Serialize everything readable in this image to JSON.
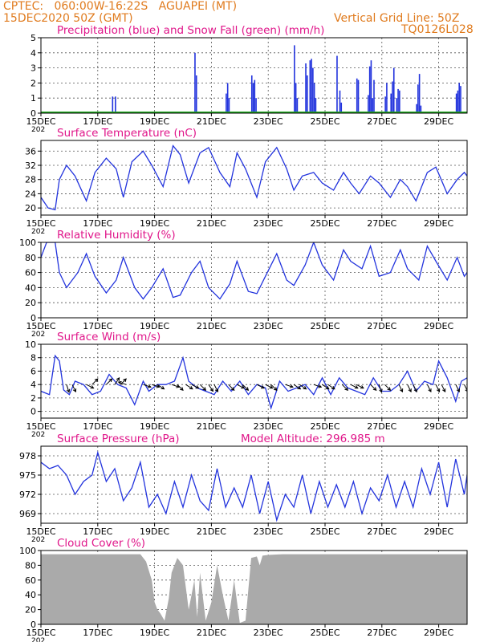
{
  "header": {
    "line1": "CPTEC:   060:00W-16:22S   AGUAPEI (MT)",
    "line2": "15DEC2020 50Z (GMT)",
    "grid_note": "Vertical Grid Line: 50Z",
    "code": "TQ0126L028",
    "color": "#e07b1e"
  },
  "colors": {
    "title": "#e0168a",
    "line": "#2233dd",
    "snow": "#22aa22",
    "cloud": "#aaaaaa",
    "arrow": "#000000"
  },
  "x_axis": {
    "range": [
      0,
      15
    ],
    "ticks": [
      0,
      2,
      4,
      6,
      8,
      10,
      12,
      14
    ],
    "labels": [
      "15DEC",
      "17DEC",
      "19DEC",
      "21DEC",
      "23DEC",
      "25DEC",
      "27DEC",
      "29DEC"
    ],
    "year_label": "202"
  },
  "chart_data": [
    {
      "type": "bar",
      "title": "Precipitation (blue) and Snow Fall (green) (mm/h)",
      "ylim": [
        0,
        5
      ],
      "yticks": [
        0,
        1,
        2,
        3,
        4,
        5
      ],
      "series": [
        {
          "name": "Precipitation",
          "x": [
            2.5,
            2.6,
            5.4,
            5.45,
            6.5,
            6.55,
            6.6,
            7.4,
            7.45,
            7.5,
            7.55,
            8.9,
            8.95,
            9.0,
            9.3,
            9.35,
            9.45,
            9.5,
            9.55,
            9.6,
            9.65,
            10.4,
            10.5,
            10.55,
            11.1,
            11.15,
            11.5,
            11.55,
            11.6,
            11.65,
            11.7,
            12.1,
            12.15,
            12.3,
            12.35,
            12.4,
            12.5,
            12.55,
            12.6,
            13.2,
            13.25,
            13.3,
            13.35,
            14.6,
            14.65,
            14.7,
            14.75
          ],
          "values": [
            1.1,
            1.1,
            4.0,
            2.5,
            1.3,
            2.0,
            1.0,
            2.5,
            2.0,
            2.2,
            1.0,
            4.5,
            2.0,
            1.0,
            3.3,
            2.5,
            3.5,
            3.6,
            3.0,
            2.0,
            1.0,
            3.8,
            1.5,
            0.7,
            2.3,
            2.2,
            1.2,
            3.1,
            3.5,
            1.0,
            2.2,
            1.1,
            2.0,
            1.3,
            2.1,
            3.0,
            1.0,
            1.6,
            1.5,
            0.6,
            1.9,
            2.6,
            0.5,
            1.3,
            1.5,
            2.0,
            1.8
          ]
        },
        {
          "name": "Snow Fall",
          "x": [
            0,
            15
          ],
          "values": [
            0,
            0
          ]
        }
      ]
    },
    {
      "type": "line",
      "title": "Surface Temperature (nC)",
      "ylim": [
        18,
        39
      ],
      "yticks": [
        20,
        24,
        28,
        32,
        36
      ],
      "series": [
        {
          "x": [
            0,
            0.25,
            0.5,
            0.65,
            0.9,
            1.2,
            1.6,
            1.9,
            2.3,
            2.65,
            2.9,
            3.2,
            3.6,
            3.9,
            4.3,
            4.65,
            4.9,
            5.2,
            5.6,
            5.9,
            6.3,
            6.65,
            6.9,
            7.2,
            7.6,
            7.9,
            8.3,
            8.65,
            8.9,
            9.2,
            9.6,
            9.9,
            10.3,
            10.65,
            10.9,
            11.2,
            11.6,
            11.9,
            12.3,
            12.65,
            12.9,
            13.2,
            13.6,
            13.9,
            14.3,
            14.65,
            14.9,
            15
          ],
          "y": [
            23,
            20,
            19.5,
            28,
            32,
            29,
            22,
            30,
            34,
            31,
            23,
            33,
            36,
            32,
            26,
            37.5,
            35,
            27,
            35.5,
            37,
            30,
            26,
            35.5,
            31,
            23,
            33,
            37,
            31,
            25,
            29,
            30,
            27,
            25,
            30,
            27,
            24,
            29,
            27,
            23,
            28,
            26,
            22,
            30,
            31.5,
            24,
            28,
            30,
            29
          ]
        }
      ]
    },
    {
      "type": "line",
      "title": "Relative Humidity (%)",
      "ylim": [
        0,
        100
      ],
      "yticks": [
        0,
        20,
        40,
        60,
        80,
        100
      ],
      "series": [
        {
          "x": [
            0,
            0.2,
            0.5,
            0.65,
            0.9,
            1.3,
            1.6,
            1.9,
            2.3,
            2.65,
            2.9,
            3.3,
            3.6,
            3.9,
            4.3,
            4.65,
            4.9,
            5.3,
            5.6,
            5.9,
            6.3,
            6.65,
            6.9,
            7.3,
            7.6,
            7.9,
            8.3,
            8.65,
            8.9,
            9.3,
            9.6,
            9.9,
            10.3,
            10.65,
            10.9,
            11.3,
            11.6,
            11.9,
            12.3,
            12.65,
            12.9,
            13.3,
            13.6,
            13.9,
            14.3,
            14.65,
            14.9,
            15
          ],
          "y": [
            80,
            100,
            100,
            60,
            40,
            60,
            85,
            55,
            33,
            50,
            80,
            40,
            25,
            40,
            65,
            27,
            30,
            60,
            75,
            40,
            25,
            45,
            75,
            35,
            32,
            55,
            85,
            50,
            43,
            70,
            100,
            70,
            50,
            90,
            75,
            65,
            95,
            55,
            60,
            90,
            65,
            50,
            95,
            75,
            50,
            80,
            55,
            60
          ]
        }
      ]
    },
    {
      "type": "line",
      "title": "Surface Wind (m/s)",
      "ylim": [
        -1,
        10
      ],
      "yticks": [
        0,
        2,
        4,
        6,
        8,
        10
      ],
      "series": [
        {
          "x": [
            0,
            0.3,
            0.5,
            0.65,
            0.8,
            1.0,
            1.2,
            1.5,
            1.8,
            2.1,
            2.4,
            2.7,
            3.0,
            3.3,
            3.6,
            3.8,
            4.1,
            4.4,
            4.7,
            5.0,
            5.2,
            5.5,
            5.8,
            6.1,
            6.4,
            6.7,
            7.0,
            7.3,
            7.6,
            7.9,
            8.1,
            8.4,
            8.7,
            9.0,
            9.3,
            9.6,
            9.9,
            10.2,
            10.5,
            10.8,
            11.1,
            11.4,
            11.7,
            12.0,
            12.3,
            12.6,
            12.9,
            13.2,
            13.5,
            13.8,
            14.0,
            14.3,
            14.6,
            14.8,
            15
          ],
          "y": [
            3,
            2.5,
            8.3,
            7.5,
            3.2,
            2.5,
            4.5,
            4.0,
            2.5,
            3.0,
            5.5,
            4.0,
            3.5,
            1.0,
            4.5,
            3.0,
            4.0,
            4.0,
            4.5,
            8.0,
            4.5,
            3.5,
            3.0,
            2.5,
            4.5,
            3.0,
            4.5,
            2.5,
            4.0,
            3.5,
            0.5,
            4.5,
            3.0,
            3.5,
            4.0,
            2.5,
            5.0,
            2.5,
            5.0,
            3.5,
            3.0,
            2.5,
            5.0,
            3.0,
            3.0,
            4.0,
            6.0,
            3.0,
            4.5,
            4.0,
            7.5,
            5.0,
            1.5,
            4.5,
            5.0
          ]
        }
      ],
      "vectors": {
        "x": [
          0.9,
          1.1,
          1.6,
          1.8,
          2.3,
          2.6,
          2.8,
          3.0,
          3.6,
          3.9,
          4.1,
          4.6,
          4.8,
          5.1,
          5.3,
          5.6,
          5.9,
          6.1,
          6.6,
          6.9,
          7.1,
          7.6,
          7.9,
          8.1,
          8.6,
          8.9,
          9.1,
          9.6,
          9.9,
          10.1,
          10.6,
          10.9,
          11.1,
          11.6,
          11.9,
          12.1,
          12.6,
          12.9,
          13.1,
          13.6,
          13.9,
          14.1,
          14.6,
          14.9
        ],
        "u": [
          1,
          1,
          2,
          2,
          2,
          2,
          2,
          -3,
          3,
          3,
          3,
          3,
          2,
          3,
          2,
          2,
          2,
          1,
          2,
          2,
          2,
          2,
          2,
          2,
          3,
          3,
          3,
          3,
          3,
          3,
          2,
          2,
          2,
          2,
          1,
          2,
          1,
          1,
          1,
          1,
          1,
          1,
          1,
          1
        ],
        "v": [
          -3,
          -2,
          -1,
          2,
          2,
          3,
          2,
          1,
          -1,
          -1,
          -2,
          -1,
          -2,
          -2,
          -1,
          -2,
          -3,
          -2,
          -2,
          -1,
          -2,
          -1,
          -1,
          -2,
          -1,
          -2,
          -2,
          -1,
          -2,
          -2,
          -2,
          -1,
          -1,
          -2,
          -3,
          -2,
          -2,
          -2,
          -2,
          -2,
          -2,
          -2,
          -2,
          -2
        ]
      }
    },
    {
      "type": "line",
      "title": "Surface Pressure (hPa)",
      "subtitle": "Model Altitude: 296.985 m",
      "ylim": [
        967.5,
        979.5
      ],
      "yticks": [
        969,
        972,
        975,
        978
      ],
      "series": [
        {
          "x": [
            0,
            0.3,
            0.6,
            0.9,
            1.2,
            1.5,
            1.8,
            2.0,
            2.3,
            2.6,
            2.9,
            3.2,
            3.5,
            3.8,
            4.1,
            4.4,
            4.7,
            5.0,
            5.3,
            5.6,
            5.9,
            6.2,
            6.5,
            6.8,
            7.1,
            7.4,
            7.7,
            8.0,
            8.3,
            8.6,
            8.9,
            9.2,
            9.5,
            9.8,
            10.1,
            10.4,
            10.7,
            11.0,
            11.3,
            11.6,
            11.9,
            12.2,
            12.5,
            12.8,
            13.1,
            13.4,
            13.7,
            14.0,
            14.3,
            14.6,
            14.9,
            15
          ],
          "y": [
            977,
            976,
            976.5,
            975,
            972,
            974,
            975,
            978.5,
            974,
            976,
            971,
            973,
            977,
            970,
            972,
            969,
            974,
            970,
            975,
            971,
            969.5,
            976,
            970,
            973,
            970,
            975,
            969,
            974,
            968,
            972,
            970,
            975,
            969,
            974,
            970,
            973.5,
            970,
            974,
            969,
            973,
            971,
            975,
            970,
            974,
            970,
            976,
            972,
            977,
            970,
            977.5,
            972,
            975
          ]
        }
      ]
    },
    {
      "type": "area",
      "title": "Cloud Cover (%)",
      "ylim": [
        0,
        100
      ],
      "yticks": [
        0,
        20,
        40,
        60,
        80,
        100
      ],
      "series": [
        {
          "x": [
            0,
            0.5,
            1,
            1.5,
            2,
            2.5,
            3,
            3.5,
            3.7,
            3.9,
            4.0,
            4.1,
            4.2,
            4.35,
            4.5,
            4.6,
            4.8,
            5.0,
            5.2,
            5.4,
            5.5,
            5.6,
            5.8,
            6.0,
            6.2,
            6.4,
            6.6,
            6.8,
            7.0,
            7.2,
            7.4,
            7.6,
            7.7,
            7.8,
            8.0,
            8.5,
            9,
            9.5,
            10,
            10.5,
            11,
            11.5,
            12,
            12.5,
            13,
            13.5,
            14,
            14.5,
            15
          ],
          "y": [
            95,
            95,
            95,
            95,
            95,
            95,
            95,
            95,
            85,
            60,
            30,
            20,
            15,
            5,
            35,
            70,
            90,
            80,
            20,
            60,
            10,
            70,
            5,
            30,
            80,
            40,
            5,
            60,
            2,
            5,
            90,
            92,
            80,
            93,
            94,
            95,
            95,
            95,
            95,
            95,
            95,
            95,
            95,
            95,
            95,
            95,
            95,
            95,
            95
          ]
        }
      ]
    }
  ]
}
